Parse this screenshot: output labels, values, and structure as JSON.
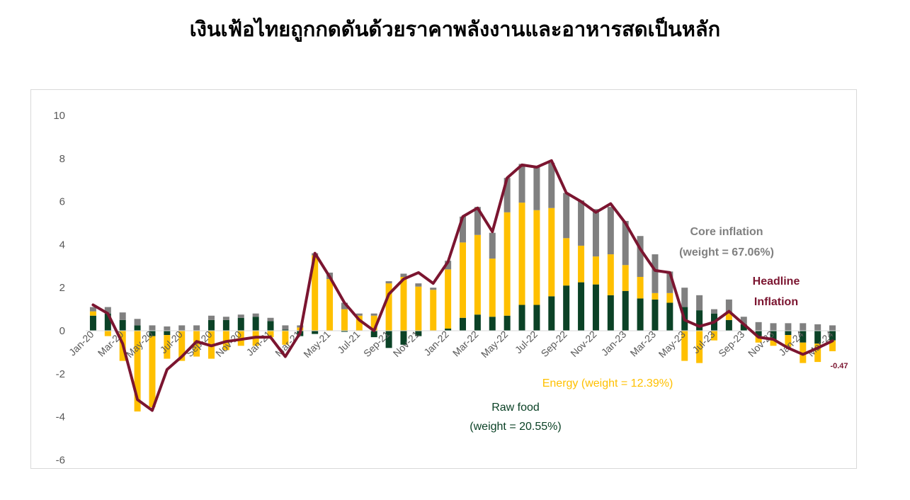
{
  "title": "เงินเฟ้อไทยถูกกดดันด้วยราคาพลังงานและอาหารสดเป็นหลัก",
  "colors": {
    "raw_food": "#0b4226",
    "energy": "#ffc000",
    "core": "#808080",
    "headline": "#7b1530",
    "axis_text": "#595959"
  },
  "chart_data": {
    "type": "bar",
    "stacked": true,
    "ylim": [
      -6,
      10
    ],
    "yticks": [
      -6,
      -4,
      -2,
      0,
      2,
      4,
      6,
      8,
      10
    ],
    "grid": false,
    "categories": [
      "Jan-20",
      "Feb-20",
      "Mar-20",
      "Apr-20",
      "May-20",
      "Jun-20",
      "Jul-20",
      "Aug-20",
      "Sep-20",
      "Oct-20",
      "Nov-20",
      "Dec-20",
      "Jan-21",
      "Feb-21",
      "Mar-21",
      "Apr-21",
      "May-21",
      "Jun-21",
      "Jul-21",
      "Aug-21",
      "Sep-21",
      "Oct-21",
      "Nov-21",
      "Dec-21",
      "Jan-22",
      "Feb-22",
      "Mar-22",
      "Apr-22",
      "May-22",
      "Jun-22",
      "Jul-22",
      "Aug-22",
      "Sep-22",
      "Oct-22",
      "Nov-22",
      "Dec-22",
      "Jan-23",
      "Feb-23",
      "Mar-23",
      "Apr-23",
      "May-23",
      "Jun-23",
      "Jul-23",
      "Aug-23",
      "Sep-23",
      "Oct-23",
      "Nov-23",
      "Dec-23",
      "Jan-24",
      "Feb-24",
      "Mar-24"
    ],
    "tick_labels": [
      "Jan-20",
      "Mar-20",
      "May-20",
      "Jul-20",
      "Sep-20",
      "Nov-20",
      "Jan-21",
      "Mar-21",
      "May-21",
      "Jul-21",
      "Sep-21",
      "Nov-21",
      "Jan-22",
      "Mar-22",
      "May-22",
      "Jul-22",
      "Sep-22",
      "Nov-22",
      "Jan-23",
      "Mar-23",
      "May-23",
      "Jul-23",
      "Sep-23",
      "Nov-23",
      "Jan-24",
      "Mar-24"
    ],
    "series": [
      {
        "name": "Raw food (weight = 20.55%)",
        "kind": "bar",
        "color_key": "raw_food",
        "values": [
          0.7,
          0.8,
          0.5,
          0.25,
          -0.25,
          -0.2,
          0.0,
          0.0,
          0.5,
          0.5,
          0.6,
          0.65,
          0.45,
          0.05,
          -0.25,
          -0.15,
          0.0,
          -0.05,
          0.0,
          -0.3,
          -0.8,
          -0.65,
          -0.25,
          0.0,
          0.1,
          0.6,
          0.75,
          0.65,
          0.7,
          1.2,
          1.2,
          1.6,
          2.1,
          2.25,
          2.15,
          1.65,
          1.85,
          1.5,
          1.45,
          1.3,
          1.1,
          0.95,
          0.8,
          0.5,
          0.3,
          -0.25,
          -0.45,
          -0.2,
          -0.55,
          -0.6,
          -0.45
        ]
      },
      {
        "name": "Energy (weight = 12.39%)",
        "kind": "bar",
        "color_key": "energy",
        "values": [
          0.2,
          -0.25,
          -1.4,
          -3.75,
          -3.3,
          -1.1,
          -1.4,
          -1.2,
          -1.3,
          -0.9,
          -0.7,
          -0.7,
          -0.3,
          -0.65,
          0.15,
          3.5,
          2.4,
          1.0,
          0.7,
          0.7,
          2.2,
          2.5,
          2.05,
          1.9,
          2.75,
          3.5,
          3.7,
          2.7,
          4.8,
          4.75,
          4.4,
          4.1,
          2.2,
          1.7,
          1.3,
          1.9,
          1.2,
          1.0,
          0.3,
          0.45,
          -1.4,
          -1.5,
          -0.45,
          0.35,
          0.0,
          -0.3,
          -0.25,
          -0.55,
          -0.95,
          -0.85,
          -0.5
        ]
      },
      {
        "name": "Core inflation (weight = 67.06%)",
        "kind": "bar",
        "color_key": "core",
        "values": [
          0.2,
          0.3,
          0.35,
          0.3,
          0.25,
          0.2,
          0.25,
          0.25,
          0.2,
          0.15,
          0.15,
          0.15,
          0.15,
          0.2,
          0.1,
          0.1,
          0.3,
          0.3,
          0.1,
          0.1,
          0.1,
          0.15,
          0.15,
          0.1,
          0.4,
          1.2,
          1.3,
          1.2,
          1.6,
          1.8,
          2.0,
          2.1,
          2.1,
          2.1,
          2.2,
          2.2,
          2.05,
          1.9,
          1.8,
          1.0,
          0.9,
          0.7,
          0.2,
          0.6,
          0.35,
          0.4,
          0.35,
          0.35,
          0.35,
          0.3,
          0.25
        ]
      },
      {
        "name": "Headline Inflation",
        "kind": "line",
        "color_key": "headline",
        "values": [
          1.2,
          0.8,
          -0.6,
          -3.2,
          -3.7,
          -1.8,
          -1.2,
          -0.5,
          -0.7,
          -0.5,
          -0.4,
          -0.3,
          -0.3,
          -1.2,
          -0.1,
          3.6,
          2.5,
          1.3,
          0.5,
          0.0,
          1.7,
          2.4,
          2.7,
          2.2,
          3.2,
          5.3,
          5.7,
          4.6,
          7.1,
          7.7,
          7.6,
          7.9,
          6.4,
          6.0,
          5.5,
          5.9,
          5.0,
          3.8,
          2.8,
          2.7,
          0.5,
          0.2,
          0.4,
          0.9,
          0.3,
          -0.3,
          -0.4,
          -0.8,
          -1.1,
          -0.8,
          -0.47
        ]
      }
    ],
    "annotations": {
      "core_line1": "Core inflation",
      "core_line2": "(weight = 67.06%)",
      "headline_line1": "Headline",
      "headline_line2": "Inflation",
      "energy": "Energy (weight = 12.39%)",
      "rawfood_line1": "Raw food",
      "rawfood_line2": "(weight = 20.55%)",
      "last_value": "-0.47"
    }
  }
}
